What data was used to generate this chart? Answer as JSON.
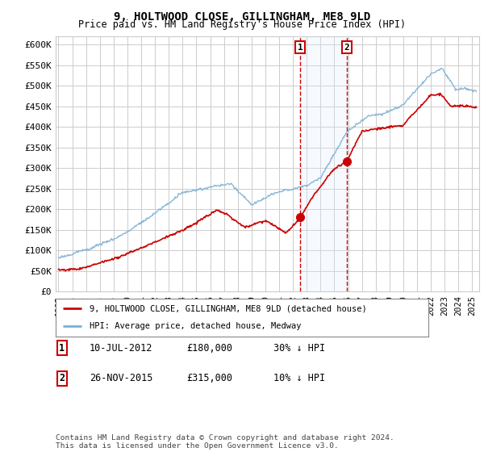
{
  "title": "9, HOLTWOOD CLOSE, GILLINGHAM, ME8 9LD",
  "subtitle": "Price paid vs. HM Land Registry's House Price Index (HPI)",
  "ylim": [
    0,
    620000
  ],
  "yticks": [
    0,
    50000,
    100000,
    150000,
    200000,
    250000,
    300000,
    350000,
    400000,
    450000,
    500000,
    550000,
    600000
  ],
  "ytick_labels": [
    "£0",
    "£50K",
    "£100K",
    "£150K",
    "£200K",
    "£250K",
    "£300K",
    "£350K",
    "£400K",
    "£450K",
    "£500K",
    "£550K",
    "£600K"
  ],
  "xlim_start": 1994.8,
  "xlim_end": 2025.5,
  "sale1_year": 2012.52,
  "sale1_price": 180000,
  "sale1_label": "10-JUL-2012",
  "sale1_price_str": "£180,000",
  "sale1_hpi_str": "30% ↓ HPI",
  "sale2_year": 2015.9,
  "sale2_price": 315000,
  "sale2_label": "26-NOV-2015",
  "sale2_price_str": "£315,000",
  "sale2_hpi_str": "10% ↓ HPI",
  "line1_color": "#cc0000",
  "line2_color": "#7bafd4",
  "shade_color": "#ddeeff",
  "grid_color": "#cccccc",
  "background_color": "#ffffff",
  "legend_label1": "9, HOLTWOOD CLOSE, GILLINGHAM, ME8 9LD (detached house)",
  "legend_label2": "HPI: Average price, detached house, Medway",
  "footnote": "Contains HM Land Registry data © Crown copyright and database right 2024.\nThis data is licensed under the Open Government Licence v3.0."
}
